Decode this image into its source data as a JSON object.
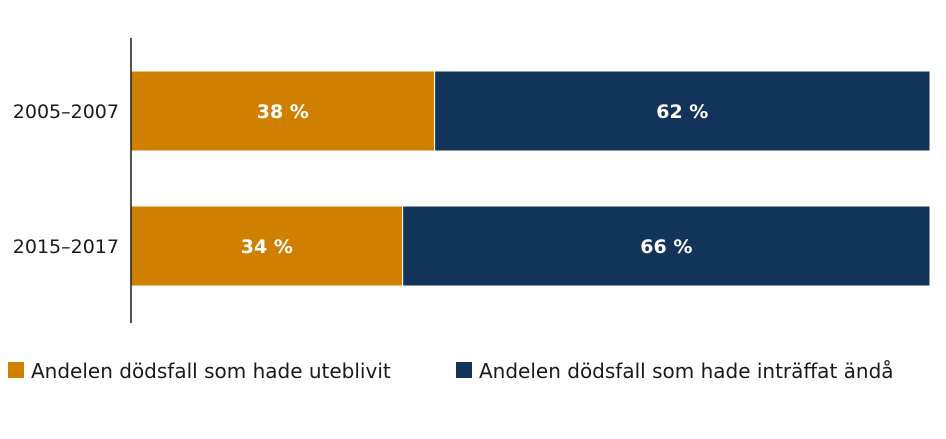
{
  "chart_data": {
    "type": "bar",
    "orientation": "horizontal",
    "stacked": true,
    "unit": "%",
    "categories": [
      "2005–2007",
      "2015–2017"
    ],
    "series": [
      {
        "name": "Andelen dödsfall som hade uteblivit",
        "color": "#d08000",
        "values": [
          38,
          34
        ],
        "labels": [
          "38 %",
          "34 %"
        ]
      },
      {
        "name": "Andelen dödsfall som hade inträffat ändå",
        "color": "#12335a",
        "values": [
          62,
          66
        ],
        "labels": [
          "62 %",
          "66 %"
        ]
      }
    ],
    "xlim": [
      0,
      100
    ],
    "grid": false,
    "legend_position": "bottom"
  }
}
